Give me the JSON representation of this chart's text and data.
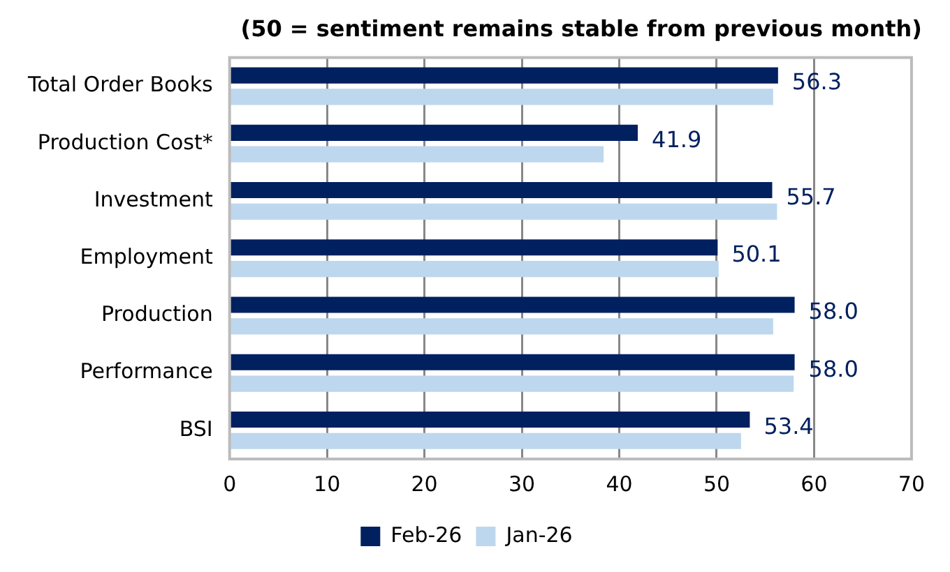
{
  "chart_data": {
    "type": "bar",
    "orientation": "horizontal",
    "title": "(50 = sentiment remains stable from previous month)",
    "categories": [
      "Total Order Books",
      "Production Cost*",
      "Investment",
      "Employment",
      "Production",
      "Performance",
      "BSI"
    ],
    "series": [
      {
        "name": "Feb-26",
        "color": "#002060",
        "values": [
          56.3,
          41.9,
          55.7,
          50.1,
          58.0,
          58.0,
          53.4
        ],
        "value_labels": [
          "56.3",
          "41.9",
          "55.7",
          "50.1",
          "58.0",
          "58.0",
          "53.4"
        ]
      },
      {
        "name": "Jan-26",
        "color": "#bdd7ee",
        "values": [
          55.8,
          38.4,
          56.2,
          50.2,
          55.8,
          57.9,
          52.5
        ]
      }
    ],
    "xlim": [
      0,
      70
    ],
    "xticks": [
      0,
      10,
      20,
      30,
      40,
      50,
      60,
      70
    ],
    "grid": "x",
    "legend": "bottom"
  }
}
